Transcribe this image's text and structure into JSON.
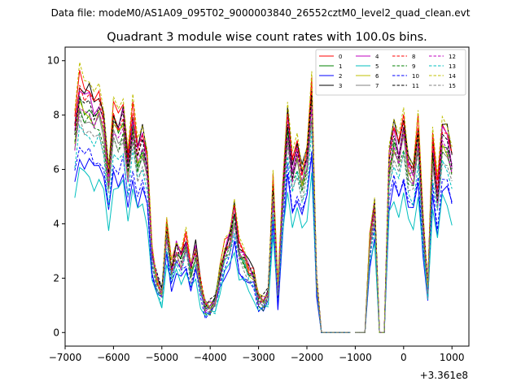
{
  "figure": {
    "suptitle": "Data file: modeM0/AS1A09_095T02_9000003840_26552cztM0_level2_quad_clean.evt"
  },
  "chart_data": {
    "type": "line",
    "title": "Quadrant 3 module wise count rates with 100.0s bins.",
    "xlabel": "",
    "ylabel": "",
    "offset_label": "+3.361e8",
    "xlim": [
      -7000,
      1350
    ],
    "ylim": [
      -0.5,
      10.5
    ],
    "xticks": [
      -7000,
      -6000,
      -5000,
      -4000,
      -3000,
      -2000,
      -1000,
      0,
      1000
    ],
    "xtick_labels": [
      "−7000",
      "−6000",
      "−5000",
      "−4000",
      "−3000",
      "−2000",
      "−1000",
      "0",
      "1000"
    ],
    "yticks": [
      0,
      2,
      4,
      6,
      8,
      10
    ],
    "ytick_labels": [
      "0",
      "2",
      "4",
      "6",
      "8",
      "10"
    ],
    "grid": false,
    "legend_position": "top-right",
    "legend_columns": 4,
    "x": [
      -6800,
      -6700,
      -6600,
      -6500,
      -6400,
      -6300,
      -6200,
      -6100,
      -6000,
      -5900,
      -5800,
      -5700,
      -5600,
      -5500,
      -5400,
      -5300,
      -5200,
      -5100,
      -5000,
      -4900,
      -4800,
      -4700,
      -4600,
      -4500,
      -4400,
      -4300,
      -4200,
      -4100,
      -4000,
      -3900,
      -3800,
      -3700,
      -3600,
      -3500,
      -3400,
      -3300,
      -3200,
      -3100,
      -3000,
      -2900,
      -2800,
      -2700,
      -2600,
      -2500,
      -2400,
      -2300,
      -2200,
      -2100,
      -2000,
      -1900,
      -1800,
      -1700,
      -1600,
      -1500,
      -1400,
      -1300,
      -1200,
      -1100,
      -1000,
      -900,
      -800,
      -700,
      -600,
      -500,
      -400,
      -300,
      -200,
      -100,
      0,
      100,
      200,
      300,
      400,
      500,
      600,
      700,
      800,
      900,
      1000
    ],
    "segments": [
      [
        0,
        57
      ],
      [
        58,
        78
      ]
    ],
    "base_profile": [
      7.6,
      9.1,
      8.7,
      8.8,
      8.3,
      8.6,
      7.9,
      5.9,
      8.1,
      7.7,
      8.2,
      6.3,
      8.0,
      6.7,
      7.3,
      6.3,
      3.0,
      2.0,
      1.5,
      3.9,
      2.4,
      3.2,
      2.8,
      3.4,
      2.4,
      3.1,
      1.8,
      1.0,
      1.0,
      1.2,
      2.2,
      3.1,
      3.5,
      4.6,
      3.1,
      2.9,
      2.4,
      2.2,
      1.3,
      1.2,
      1.5,
      5.5,
      1.5,
      5.3,
      8.0,
      6.1,
      6.9,
      5.9,
      6.6,
      9.0,
      2.0,
      0.0,
      0.0,
      0.0,
      0.0,
      0.0,
      0.0,
      0.0,
      0.0,
      0.0,
      0.0,
      3.5,
      4.8,
      0.0,
      0.0,
      6.5,
      7.5,
      6.8,
      7.8,
      6.3,
      6.0,
      7.6,
      4.2,
      1.7,
      7.0,
      5.2,
      7.5,
      7.3,
      6.4
    ],
    "series": [
      {
        "name": "0",
        "color": "#ff0000",
        "style": "solid",
        "scale": 1.03
      },
      {
        "name": "1",
        "color": "#008000",
        "style": "solid",
        "scale": 0.95
      },
      {
        "name": "2",
        "color": "#0000ff",
        "style": "solid",
        "scale": 0.72
      },
      {
        "name": "3",
        "color": "#000000",
        "style": "solid",
        "scale": 1.01
      },
      {
        "name": "4",
        "color": "#bf00bf",
        "style": "solid",
        "scale": 0.98
      },
      {
        "name": "5",
        "color": "#00bfbf",
        "style": "solid",
        "scale": 0.66
      },
      {
        "name": "6",
        "color": "#bfbf00",
        "style": "solid",
        "scale": 0.93
      },
      {
        "name": "7",
        "color": "#808080",
        "style": "solid",
        "scale": 0.9
      },
      {
        "name": "8",
        "color": "#ff0000",
        "style": "dashed",
        "scale": 0.99
      },
      {
        "name": "9",
        "color": "#008000",
        "style": "dashed",
        "scale": 0.89
      },
      {
        "name": "10",
        "color": "#0000ff",
        "style": "dashed",
        "scale": 0.76
      },
      {
        "name": "11",
        "color": "#000000",
        "style": "dashed",
        "scale": 0.97
      },
      {
        "name": "12",
        "color": "#bf00bf",
        "style": "dashed",
        "scale": 0.92
      },
      {
        "name": "13",
        "color": "#00bfbf",
        "style": "dashed",
        "scale": 0.82
      },
      {
        "name": "14",
        "color": "#bfbf00",
        "style": "dashed",
        "scale": 1.06
      },
      {
        "name": "15",
        "color": "#808080",
        "style": "dashed",
        "scale": 0.86
      }
    ]
  }
}
